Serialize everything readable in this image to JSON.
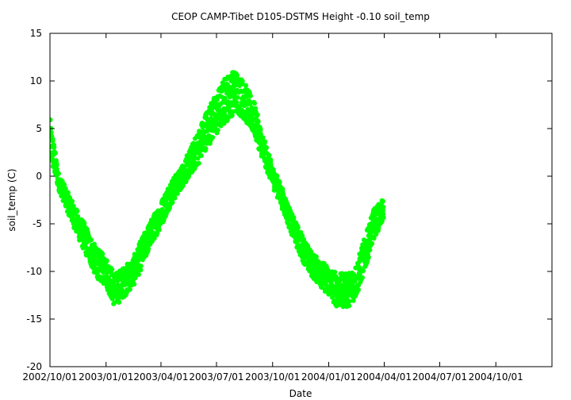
{
  "chart_data": {
    "type": "scatter",
    "title": "CEOP CAMP-Tibet D105-DSTMS Height -0.10 soil_temp",
    "xlabel": "Date",
    "ylabel": "soil_temp (C)",
    "xlim": [
      "2002-10-01",
      "2005-01-01"
    ],
    "ylim": [
      -20,
      15
    ],
    "x_ticks": [
      "2002/10/01",
      "2003/01/01",
      "2003/04/01",
      "2003/07/01",
      "2003/10/01",
      "2004/01/01",
      "2004/04/01",
      "2004/07/01",
      "2004/10/01"
    ],
    "y_ticks": [
      15,
      10,
      5,
      0,
      -5,
      -10,
      -15,
      -20
    ],
    "grid": false,
    "legend": "none",
    "color": "#00ff00",
    "series": [
      {
        "x": [
          "2002-10-01",
          "2002-10-15",
          "2002-11-01",
          "2002-11-15",
          "2002-12-01",
          "2002-12-15",
          "2003-01-01",
          "2003-01-15",
          "2003-02-01",
          "2003-02-15",
          "2003-03-01",
          "2003-03-15",
          "2003-04-01",
          "2003-04-15",
          "2003-05-01",
          "2003-05-15",
          "2003-06-01",
          "2003-06-15",
          "2003-07-01",
          "2003-07-15",
          "2003-08-01",
          "2003-08-15",
          "2003-09-01",
          "2003-09-15",
          "2003-10-01",
          "2003-10-15",
          "2003-11-01",
          "2003-11-15",
          "2003-12-01",
          "2003-12-15",
          "2004-01-01",
          "2004-01-15",
          "2004-02-01",
          "2004-02-15",
          "2004-03-01",
          "2004-03-15",
          "2004-03-31"
        ],
        "y": [
          4,
          -0.5,
          -3,
          -5,
          -7,
          -9,
          -10,
          -12,
          -11,
          -10,
          -8,
          -6,
          -4,
          -2,
          -0.5,
          1,
          3,
          5,
          6.5,
          8,
          9,
          8,
          6,
          3,
          0,
          -2,
          -5,
          -7,
          -9,
          -10,
          -11,
          -12,
          -12,
          -11,
          -8,
          -5,
          -3.5
        ],
        "spread": [
          5,
          2,
          2.5,
          3,
          3.5,
          3.5,
          3.5,
          4,
          3.5,
          3.5,
          3.5,
          3,
          3,
          3,
          2.5,
          3,
          4,
          4.5,
          5,
          5.5,
          5,
          4.5,
          4,
          3,
          2.5,
          2.5,
          2.5,
          3,
          3,
          3,
          3.5,
          4,
          4,
          4,
          4,
          3.5,
          2.5
        ]
      }
    ]
  }
}
